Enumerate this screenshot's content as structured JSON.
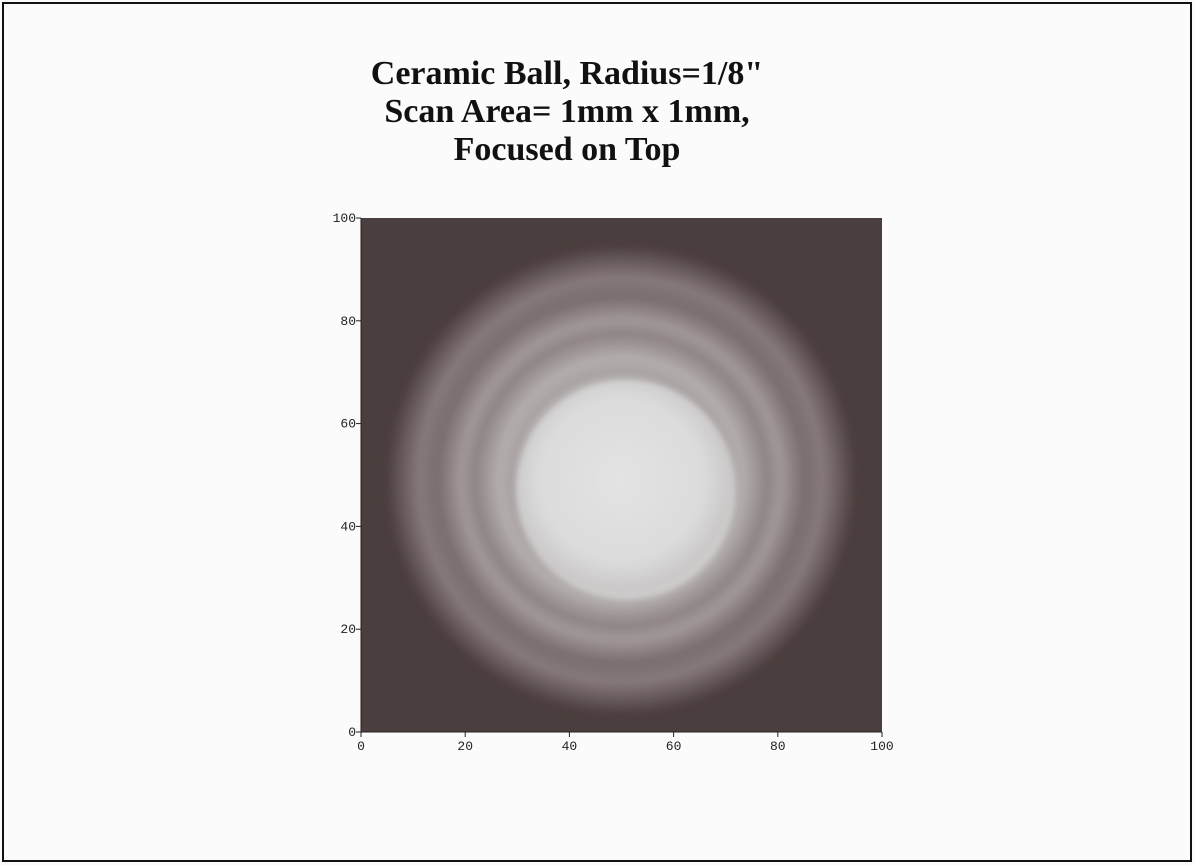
{
  "chart_data": {
    "type": "image",
    "title": [
      "Ceramic Ball, Radius=1/8\"",
      "Scan Area= 1mm x 1mm,",
      "Focused on Top"
    ],
    "xlim": [
      0,
      100
    ],
    "ylim": [
      0,
      100
    ],
    "xticks": [
      0,
      20,
      40,
      60,
      80,
      100
    ],
    "yticks": [
      0,
      20,
      40,
      60,
      80,
      100
    ]
  }
}
